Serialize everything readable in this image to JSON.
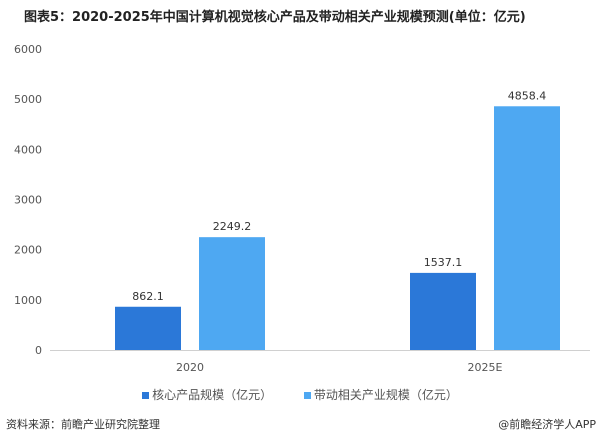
{
  "chart_data": {
    "type": "bar",
    "title": "图表5：2020-2025年中国计算机视觉核心产品及带动相关产业规模预测(单位：亿元)",
    "categories": [
      "2020",
      "2025E"
    ],
    "series": [
      {
        "name": "核心产品规模（亿元）",
        "values": [
          862.1,
          1537.1
        ],
        "color": "#2b78d8"
      },
      {
        "name": "带动相关产业规模（亿元）",
        "values": [
          2249.2,
          4858.4
        ],
        "color": "#4ea8f2"
      }
    ],
    "labels": [
      [
        "862.1",
        "1537.1"
      ],
      [
        "2249.2",
        "4858.4"
      ]
    ],
    "yticks": [
      "0",
      "1000",
      "2000",
      "3000",
      "4000",
      "5000",
      "6000"
    ],
    "ylim": [
      0,
      6000
    ],
    "grid": false,
    "legend": "bottom"
  },
  "footer": {
    "source": "资料来源：前瞻产业研究院整理",
    "credit": "@前瞻经济学人APP"
  }
}
